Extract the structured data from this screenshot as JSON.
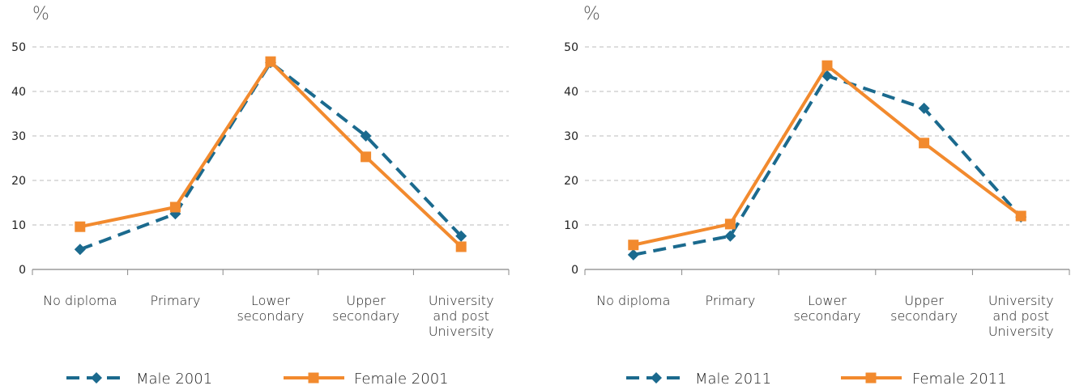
{
  "chart_data": [
    {
      "type": "line",
      "y_label": "%",
      "categories": [
        "No diploma",
        "Primary",
        "Lower secondary",
        "Upper secondary",
        "University and post University"
      ],
      "series": [
        {
          "name": "Male 2001",
          "color": "#1b6a8e",
          "dashed": true,
          "marker": "diamond",
          "values": [
            4.5,
            12.5,
            46.5,
            30,
            7.5
          ]
        },
        {
          "name": "Female 2001",
          "color": "#f28a2e",
          "dashed": false,
          "marker": "square",
          "values": [
            9.6,
            14,
            46.7,
            25.3,
            5.1
          ]
        }
      ],
      "ylim": [
        0,
        50
      ],
      "yticks": [
        0,
        10,
        20,
        30,
        40,
        50
      ],
      "grid": true
    },
    {
      "type": "line",
      "y_label": "%",
      "categories": [
        "No diploma",
        "Primary",
        "Lower secondary",
        "Upper secondary",
        "University and post University"
      ],
      "series": [
        {
          "name": "Male 2011",
          "color": "#1b6a8e",
          "dashed": true,
          "marker": "diamond",
          "values": [
            3.3,
            7.5,
            43.5,
            36.2,
            11.8
          ]
        },
        {
          "name": "Female 2011",
          "color": "#f28a2e",
          "dashed": false,
          "marker": "square",
          "values": [
            5.5,
            10.2,
            45.8,
            28.4,
            12
          ]
        }
      ],
      "ylim": [
        0,
        50
      ],
      "yticks": [
        0,
        10,
        20,
        30,
        40,
        50
      ],
      "grid": true
    }
  ]
}
